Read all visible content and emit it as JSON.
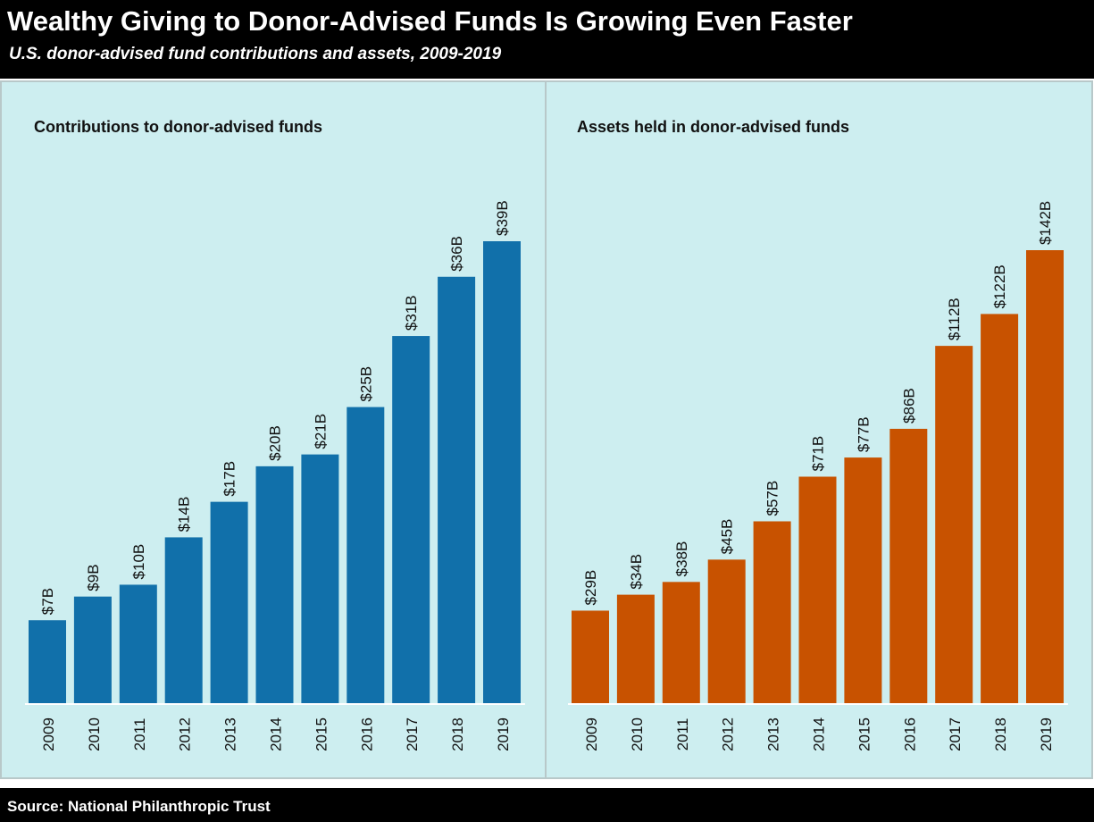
{
  "title": "Wealthy Giving to Donor-Advised Funds Is Growing Even Faster",
  "subtitle": "U.S. donor-advised fund contributions and assets, 2009-2019",
  "source": "Source: National Philanthropic Trust",
  "chart_data": [
    {
      "type": "bar",
      "title": "Contributions to donor-advised funds",
      "color": "#1170aa",
      "categories": [
        "2009",
        "2010",
        "2011",
        "2012",
        "2013",
        "2014",
        "2015",
        "2016",
        "2017",
        "2018",
        "2019"
      ],
      "values": [
        7,
        9,
        10,
        14,
        17,
        20,
        21,
        25,
        31,
        36,
        39
      ],
      "value_labels": [
        "$7B",
        "$9B",
        "$10B",
        "$14B",
        "$17B",
        "$20B",
        "$21B",
        "$25B",
        "$31B",
        "$36B",
        "$39B"
      ]
    },
    {
      "type": "bar",
      "title": "Assets held in donor-advised funds",
      "color": "#c85200",
      "categories": [
        "2009",
        "2010",
        "2011",
        "2012",
        "2013",
        "2014",
        "2015",
        "2016",
        "2017",
        "2018",
        "2019"
      ],
      "values": [
        29,
        34,
        38,
        45,
        57,
        71,
        77,
        86,
        112,
        122,
        142
      ],
      "value_labels": [
        "$29B",
        "$34B",
        "$38B",
        "$45B",
        "$57B",
        "$71B",
        "$77B",
        "$86B",
        "$112B",
        "$122B",
        "$142B"
      ]
    }
  ]
}
